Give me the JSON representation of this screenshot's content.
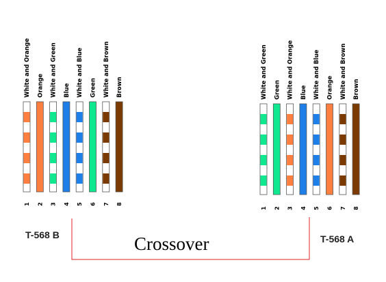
{
  "colors": {
    "orange": "#FF7F40",
    "green": "#10E890",
    "blue": "#1E7FE8",
    "brown": "#7A3A00",
    "stripe_base": "#ffffff",
    "connector": "#E02020",
    "outline": "#555555"
  },
  "left": {
    "standard_label": "T-568 B",
    "wires": [
      {
        "pin": "1",
        "label": "White and Orange",
        "color": "orange",
        "striped": true
      },
      {
        "pin": "2",
        "label": "Orange",
        "color": "orange",
        "striped": false
      },
      {
        "pin": "3",
        "label": "White and Green",
        "color": "green",
        "striped": true
      },
      {
        "pin": "4",
        "label": "Blue",
        "color": "blue",
        "striped": false
      },
      {
        "pin": "5",
        "label": "White and Blue",
        "color": "blue",
        "striped": true
      },
      {
        "pin": "6",
        "label": "Green",
        "color": "green",
        "striped": false
      },
      {
        "pin": "7",
        "label": "White and Brown",
        "color": "brown",
        "striped": true
      },
      {
        "pin": "8",
        "label": "Brown",
        "color": "brown",
        "striped": false
      }
    ]
  },
  "right": {
    "standard_label": "T-568 A",
    "wires": [
      {
        "pin": "1",
        "label": "White and Green",
        "color": "green",
        "striped": true
      },
      {
        "pin": "2",
        "label": "Green",
        "color": "green",
        "striped": false
      },
      {
        "pin": "3",
        "label": "White and Orange",
        "color": "orange",
        "striped": true
      },
      {
        "pin": "4",
        "label": "Blue",
        "color": "blue",
        "striped": false
      },
      {
        "pin": "5",
        "label": "White and Blue",
        "color": "blue",
        "striped": true
      },
      {
        "pin": "6",
        "label": "Orange",
        "color": "orange",
        "striped": false
      },
      {
        "pin": "7",
        "label": "White and Brown",
        "color": "brown",
        "striped": true
      },
      {
        "pin": "8",
        "label": "Brown",
        "color": "brown",
        "striped": false
      }
    ]
  },
  "center_label": "Crossover"
}
